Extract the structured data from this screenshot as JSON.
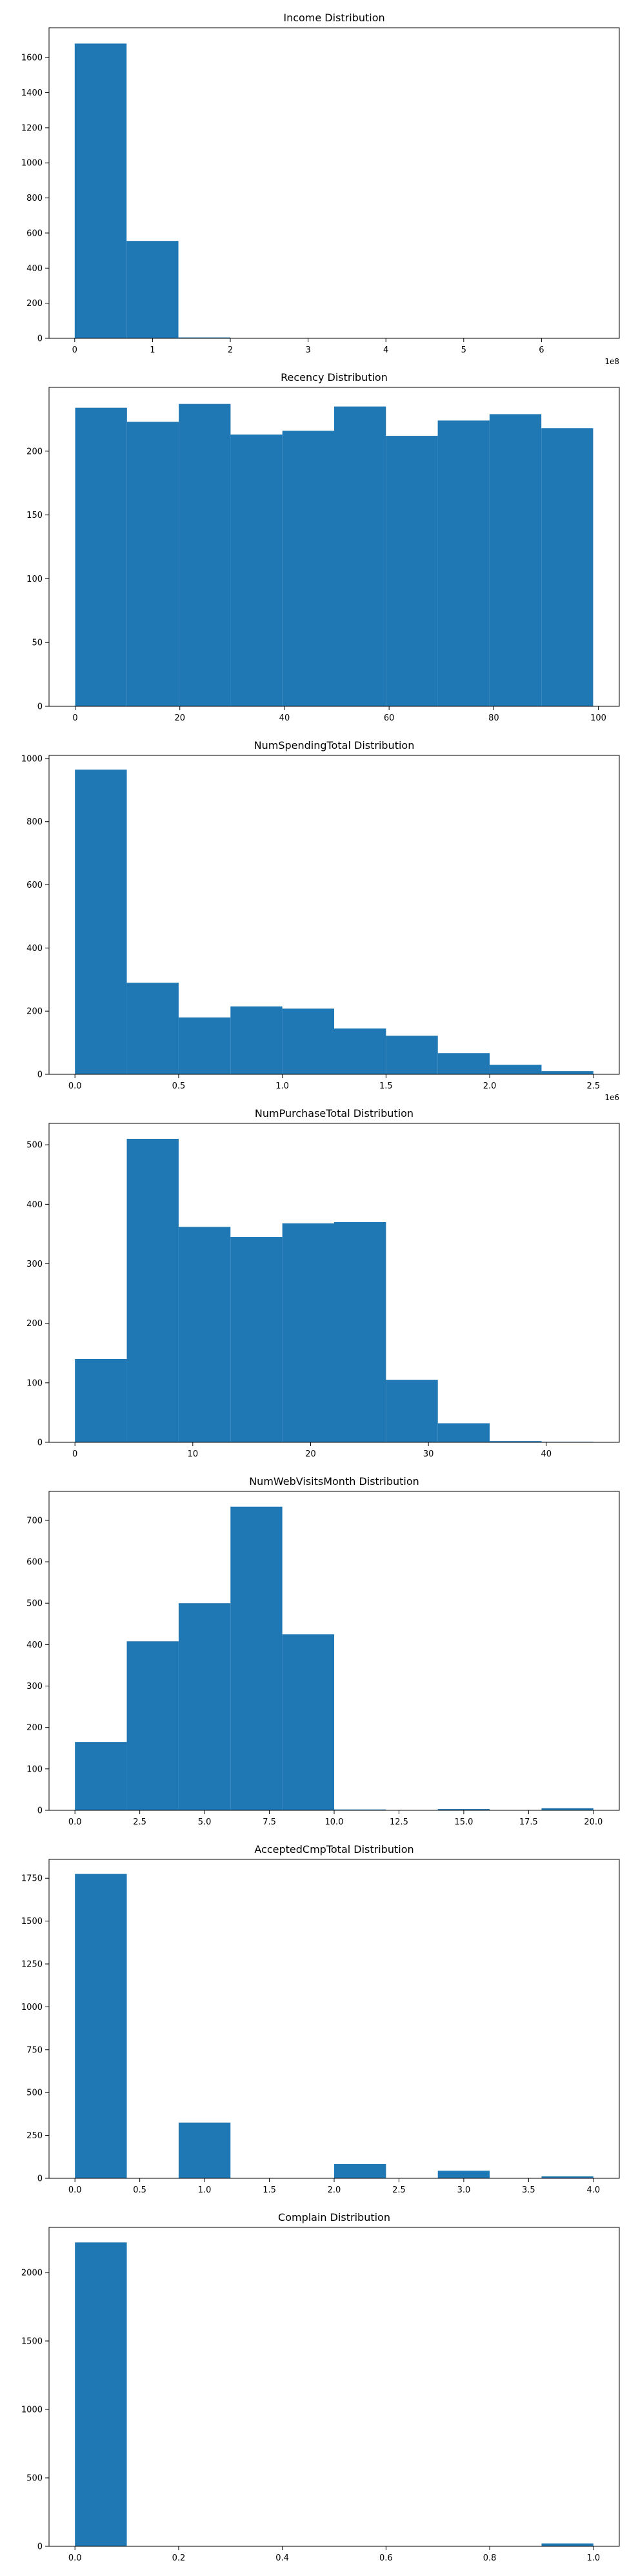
{
  "colors": {
    "bar": "#1f77b4",
    "axis": "#000000",
    "background": "#ffffff"
  },
  "chart_data": [
    {
      "type": "bar",
      "title": "Income Distribution",
      "xlim": [
        -0.33,
        7.0
      ],
      "ylim": [
        0,
        1770
      ],
      "xticks": [
        0,
        1,
        2,
        3,
        4,
        5,
        6
      ],
      "xtick_labels": [
        "0",
        "1",
        "2",
        "3",
        "4",
        "5",
        "6"
      ],
      "yticks": [
        0,
        200,
        400,
        600,
        800,
        1000,
        1200,
        1400,
        1600
      ],
      "ytick_labels": [
        "0",
        "200",
        "400",
        "600",
        "800",
        "1000",
        "1200",
        "1400",
        "1600"
      ],
      "x_offset_label": "1e8",
      "bins": [
        [
          0,
          0.667
        ],
        [
          0.667,
          1.333
        ],
        [
          1.333,
          2.0
        ],
        [
          2.0,
          2.667
        ],
        [
          2.667,
          3.333
        ],
        [
          3.333,
          4.0
        ],
        [
          4.0,
          4.667
        ],
        [
          4.667,
          5.333
        ],
        [
          5.333,
          6.0
        ],
        [
          6.0,
          6.667
        ]
      ],
      "values": [
        1680,
        555,
        5,
        0,
        0,
        0,
        0,
        0,
        0,
        1
      ]
    },
    {
      "type": "bar",
      "title": "Recency Distribution",
      "xlim": [
        -5,
        104
      ],
      "ylim": [
        0,
        250
      ],
      "xticks": [
        0,
        20,
        40,
        60,
        80,
        100
      ],
      "xtick_labels": [
        "0",
        "20",
        "40",
        "60",
        "80",
        "100"
      ],
      "yticks": [
        0,
        50,
        100,
        150,
        200
      ],
      "ytick_labels": [
        "0",
        "50",
        "100",
        "150",
        "200"
      ],
      "bins": [
        [
          0,
          9.9
        ],
        [
          9.9,
          19.8
        ],
        [
          19.8,
          29.7
        ],
        [
          29.7,
          39.6
        ],
        [
          39.6,
          49.5
        ],
        [
          49.5,
          59.4
        ],
        [
          59.4,
          69.3
        ],
        [
          69.3,
          79.2
        ],
        [
          79.2,
          89.1
        ],
        [
          89.1,
          99
        ]
      ],
      "values": [
        234,
        223,
        237,
        213,
        216,
        235,
        212,
        224,
        229,
        218
      ]
    },
    {
      "type": "bar",
      "title": "NumSpendingTotal Distribution",
      "xlim": [
        -0.125,
        2.625
      ],
      "ylim": [
        0,
        1010
      ],
      "xticks": [
        0.0,
        0.5,
        1.0,
        1.5,
        2.0,
        2.5
      ],
      "xtick_labels": [
        "0.0",
        "0.5",
        "1.0",
        "1.5",
        "2.0",
        "2.5"
      ],
      "yticks": [
        0,
        200,
        400,
        600,
        800,
        1000
      ],
      "ytick_labels": [
        "0",
        "200",
        "400",
        "600",
        "800",
        "1000"
      ],
      "x_offset_label": "1e6",
      "bins": [
        [
          0,
          0.25
        ],
        [
          0.25,
          0.5
        ],
        [
          0.5,
          0.75
        ],
        [
          0.75,
          1.0
        ],
        [
          1.0,
          1.25
        ],
        [
          1.25,
          1.5
        ],
        [
          1.5,
          1.75
        ],
        [
          1.75,
          2.0
        ],
        [
          2.0,
          2.25
        ],
        [
          2.25,
          2.5
        ]
      ],
      "values": [
        965,
        290,
        180,
        215,
        208,
        145,
        122,
        67,
        30,
        10
      ]
    },
    {
      "type": "bar",
      "title": "NumPurchaseTotal Distribution",
      "xlim": [
        -2.2,
        46.2
      ],
      "ylim": [
        0,
        536
      ],
      "xticks": [
        0,
        10,
        20,
        30,
        40
      ],
      "xtick_labels": [
        "0",
        "10",
        "20",
        "30",
        "40"
      ],
      "yticks": [
        0,
        100,
        200,
        300,
        400,
        500
      ],
      "ytick_labels": [
        "0",
        "100",
        "200",
        "300",
        "400",
        "500"
      ],
      "bins": [
        [
          0,
          4.4
        ],
        [
          4.4,
          8.8
        ],
        [
          8.8,
          13.2
        ],
        [
          13.2,
          17.6
        ],
        [
          17.6,
          22.0
        ],
        [
          22.0,
          26.4
        ],
        [
          26.4,
          30.8
        ],
        [
          30.8,
          35.2
        ],
        [
          35.2,
          39.6
        ],
        [
          39.6,
          44.0
        ]
      ],
      "values": [
        140,
        510,
        362,
        345,
        368,
        370,
        105,
        32,
        2,
        1
      ]
    },
    {
      "type": "bar",
      "title": "NumWebVisitsMonth Distribution",
      "xlim": [
        -1.0,
        21.0
      ],
      "ylim": [
        0,
        770
      ],
      "xticks": [
        0.0,
        2.5,
        5.0,
        7.5,
        10.0,
        12.5,
        15.0,
        17.5,
        20.0
      ],
      "xtick_labels": [
        "0.0",
        "2.5",
        "5.0",
        "7.5",
        "10.0",
        "12.5",
        "15.0",
        "17.5",
        "20.0"
      ],
      "yticks": [
        0,
        100,
        200,
        300,
        400,
        500,
        600,
        700
      ],
      "ytick_labels": [
        "0",
        "100",
        "200",
        "300",
        "400",
        "500",
        "600",
        "700"
      ],
      "bins": [
        [
          0,
          2
        ],
        [
          2,
          4
        ],
        [
          4,
          6
        ],
        [
          6,
          8
        ],
        [
          8,
          10
        ],
        [
          10,
          12
        ],
        [
          12,
          14
        ],
        [
          14,
          16
        ],
        [
          16,
          18
        ],
        [
          18,
          20
        ]
      ],
      "values": [
        165,
        408,
        500,
        733,
        425,
        2,
        0,
        3,
        0,
        5
      ]
    },
    {
      "type": "bar",
      "title": "AcceptedCmpTotal Distribution",
      "xlim": [
        -0.2,
        4.2
      ],
      "ylim": [
        0,
        1860
      ],
      "xticks": [
        0.0,
        0.5,
        1.0,
        1.5,
        2.0,
        2.5,
        3.0,
        3.5,
        4.0
      ],
      "xtick_labels": [
        "0.0",
        "0.5",
        "1.0",
        "1.5",
        "2.0",
        "2.5",
        "3.0",
        "3.5",
        "4.0"
      ],
      "yticks": [
        0,
        250,
        500,
        750,
        1000,
        1250,
        1500,
        1750
      ],
      "ytick_labels": [
        "0",
        "250",
        "500",
        "750",
        "1000",
        "1250",
        "1500",
        "1750"
      ],
      "bins": [
        [
          0,
          0.4
        ],
        [
          0.4,
          0.8
        ],
        [
          0.8,
          1.2
        ],
        [
          1.2,
          1.6
        ],
        [
          1.6,
          2.0
        ],
        [
          2.0,
          2.4
        ],
        [
          2.4,
          2.8
        ],
        [
          2.8,
          3.2
        ],
        [
          3.2,
          3.6
        ],
        [
          3.6,
          4.0
        ]
      ],
      "values": [
        1775,
        0,
        325,
        0,
        0,
        83,
        0,
        44,
        0,
        11
      ]
    },
    {
      "type": "bar",
      "title": "Complain Distribution",
      "xlim": [
        -0.05,
        1.05
      ],
      "ylim": [
        0,
        2330
      ],
      "xticks": [
        0.0,
        0.2,
        0.4,
        0.6,
        0.8,
        1.0
      ],
      "xtick_labels": [
        "0.0",
        "0.2",
        "0.4",
        "0.6",
        "0.8",
        "1.0"
      ],
      "yticks": [
        0,
        500,
        1000,
        1500,
        2000
      ],
      "ytick_labels": [
        "0",
        "500",
        "1000",
        "1500",
        "2000"
      ],
      "bins": [
        [
          0,
          0.1
        ],
        [
          0.1,
          0.2
        ],
        [
          0.2,
          0.3
        ],
        [
          0.3,
          0.4
        ],
        [
          0.4,
          0.5
        ],
        [
          0.5,
          0.6
        ],
        [
          0.6,
          0.7
        ],
        [
          0.7,
          0.8
        ],
        [
          0.8,
          0.9
        ],
        [
          0.9,
          1.0
        ]
      ],
      "values": [
        2220,
        0,
        0,
        0,
        0,
        0,
        0,
        0,
        0,
        21
      ]
    }
  ]
}
